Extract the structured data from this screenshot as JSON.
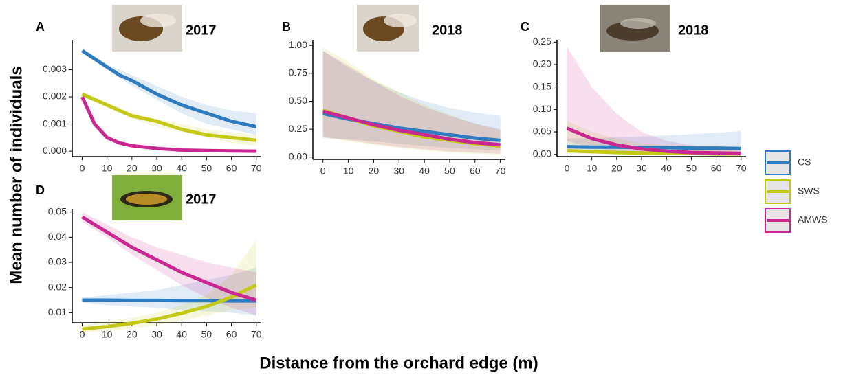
{
  "y_label": "Mean number of individuals",
  "x_label": "Distance from the orchard edge (m)",
  "legend": [
    {
      "name": "CS",
      "color": "#2e7bc0"
    },
    {
      "name": "SWS",
      "color": "#c4c817"
    },
    {
      "name": "AMWS",
      "color": "#c8288f"
    }
  ],
  "chart_data": [
    {
      "type": "line",
      "label": "A",
      "year": "2017",
      "x": [
        0,
        5,
        10,
        15,
        20,
        30,
        40,
        50,
        60,
        70
      ],
      "xlim": [
        -4,
        72
      ],
      "xticks": [
        0,
        10,
        20,
        30,
        40,
        50,
        60,
        70
      ],
      "ylim": [
        -0.0002,
        0.0041
      ],
      "yticks": [
        {
          "value": 0,
          "label": "0.000"
        },
        {
          "value": 0.001,
          "label": "0.001"
        },
        {
          "value": 0.002,
          "label": "0.002"
        },
        {
          "value": 0.003,
          "label": "0.003"
        }
      ],
      "series": [
        {
          "values": [
            0.0037,
            0.0034,
            0.0031,
            0.0028,
            0.0026,
            0.0021,
            0.0017,
            0.0014,
            0.0011,
            0.0009
          ],
          "lower": [
            0.0036,
            0.0033,
            0.003,
            0.0027,
            0.0024,
            0.0019,
            0.0014,
            0.001,
            0.0008,
            0.0006
          ],
          "upper": [
            0.0038,
            0.0035,
            0.0032,
            0.003,
            0.0028,
            0.0024,
            0.002,
            0.0017,
            0.0015,
            0.0014
          ]
        },
        {
          "values": [
            0.0021,
            0.0019,
            0.0017,
            0.0015,
            0.0013,
            0.0011,
            0.0008,
            0.0006,
            0.0005,
            0.0004
          ],
          "lower": [
            0.002,
            0.0018,
            0.0016,
            0.0014,
            0.0012,
            0.0009,
            0.0007,
            0.0005,
            0.0003,
            0.0002
          ],
          "upper": [
            0.0022,
            0.002,
            0.0018,
            0.0016,
            0.0014,
            0.0012,
            0.001,
            0.0008,
            0.0007,
            0.0006
          ]
        },
        {
          "values": [
            0.002,
            0.001,
            0.0005,
            0.0003,
            0.0002,
            0.0001,
            4e-05,
            2e-05,
            1e-05,
            0
          ]
        }
      ]
    },
    {
      "type": "line",
      "label": "B",
      "year": "2018",
      "x": [
        0,
        10,
        20,
        30,
        40,
        50,
        60,
        70
      ],
      "xlim": [
        -4,
        72
      ],
      "xticks": [
        0,
        10,
        20,
        30,
        40,
        50,
        60,
        70
      ],
      "ylim": [
        -0.02,
        1.05
      ],
      "yticks": [
        {
          "value": 0,
          "label": "0.00"
        },
        0.25,
        {
          "value": 0.5,
          "label": "0.50"
        },
        0.75,
        {
          "value": 1,
          "label": "1.00"
        }
      ],
      "series": [
        {
          "values": [
            0.39,
            0.34,
            0.3,
            0.26,
            0.23,
            0.2,
            0.17,
            0.15
          ],
          "lower": [
            0.17,
            0.16,
            0.14,
            0.12,
            0.1,
            0.08,
            0.07,
            0.06
          ],
          "upper": [
            0.95,
            0.8,
            0.68,
            0.58,
            0.5,
            0.44,
            0.4,
            0.37
          ]
        },
        {
          "values": [
            0.42,
            0.35,
            0.28,
            0.23,
            0.18,
            0.15,
            0.12,
            0.1
          ],
          "lower": [
            0.18,
            0.14,
            0.11,
            0.08,
            0.06,
            0.04,
            0.03,
            0.02
          ],
          "upper": [
            0.98,
            0.85,
            0.7,
            0.58,
            0.47,
            0.38,
            0.3,
            0.24
          ]
        },
        {
          "values": [
            0.41,
            0.35,
            0.29,
            0.24,
            0.2,
            0.16,
            0.13,
            0.11
          ],
          "lower": [
            0.18,
            0.15,
            0.12,
            0.09,
            0.07,
            0.05,
            0.04,
            0.03
          ],
          "upper": [
            0.95,
            0.82,
            0.68,
            0.55,
            0.45,
            0.37,
            0.3,
            0.25
          ]
        }
      ]
    },
    {
      "type": "line",
      "label": "C",
      "year": "2018",
      "x": [
        0,
        10,
        20,
        30,
        40,
        50,
        60,
        70
      ],
      "xlim": [
        -4,
        72
      ],
      "xticks": [
        0,
        10,
        20,
        30,
        40,
        50,
        60,
        70
      ],
      "ylim": [
        -0.005,
        0.255
      ],
      "yticks": [
        {
          "value": 0,
          "label": "0.00"
        },
        0.05,
        {
          "value": 0.1,
          "label": "0.10"
        },
        0.15,
        {
          "value": 0.2,
          "label": "0.20"
        },
        0.25
      ],
      "series": [
        {
          "values": [
            0.017,
            0.016,
            0.016,
            0.015,
            0.015,
            0.014,
            0.014,
            0.013
          ],
          "lower": [
            0.008,
            0.007,
            0.006,
            0.005,
            0.004,
            0.003,
            0.003,
            0.002
          ],
          "upper": [
            0.035,
            0.036,
            0.038,
            0.04,
            0.042,
            0.045,
            0.048,
            0.052
          ]
        },
        {
          "values": [
            0.008,
            0.006,
            0.004,
            0.003,
            0.002,
            0.002,
            0.001,
            0.001
          ],
          "lower": [
            0.002,
            0.001,
            0.001,
            0,
            0,
            0,
            0,
            0
          ],
          "upper": [
            0.075,
            0.05,
            0.035,
            0.025,
            0.02,
            0.018,
            0.015,
            0.012
          ]
        },
        {
          "values": [
            0.058,
            0.035,
            0.021,
            0.012,
            0.007,
            0.004,
            0.003,
            0.002
          ],
          "lower": [
            0.03,
            0.015,
            0.007,
            0.003,
            0.001,
            0.001,
            0,
            0
          ],
          "upper": [
            0.24,
            0.15,
            0.09,
            0.05,
            0.03,
            0.02,
            0.015,
            0.01
          ]
        }
      ]
    },
    {
      "type": "line",
      "label": "D",
      "year": "2017",
      "x": [
        0,
        10,
        20,
        30,
        40,
        50,
        60,
        70
      ],
      "xlim": [
        -4,
        72
      ],
      "xticks": [
        0,
        10,
        20,
        30,
        40,
        50,
        60,
        70
      ],
      "ylim": [
        0.006,
        0.051
      ],
      "yticks": [
        0.01,
        0.02,
        0.03,
        0.04,
        0.05
      ],
      "series": [
        {
          "values": [
            0.015,
            0.015,
            0.0149,
            0.0149,
            0.0148,
            0.0148,
            0.0147,
            0.0147
          ],
          "lower": [
            0.014,
            0.013,
            0.0125,
            0.012,
            0.011,
            0.0105,
            0.01,
            0.009
          ],
          "upper": [
            0.016,
            0.017,
            0.018,
            0.019,
            0.021,
            0.023,
            0.025,
            0.028
          ]
        },
        {
          "values": [
            0.0035,
            0.0045,
            0.0058,
            0.0075,
            0.0098,
            0.0125,
            0.0162,
            0.021
          ],
          "lower": [
            0.002,
            0.0028,
            0.0038,
            0.005,
            0.0068,
            0.009,
            0.011,
            0.012
          ],
          "upper": [
            0.005,
            0.0065,
            0.008,
            0.01,
            0.013,
            0.017,
            0.025,
            0.039
          ]
        },
        {
          "values": [
            0.048,
            0.042,
            0.036,
            0.031,
            0.026,
            0.022,
            0.018,
            0.015
          ],
          "lower": [
            0.046,
            0.04,
            0.033,
            0.027,
            0.021,
            0.016,
            0.012,
            0.009
          ],
          "upper": [
            0.05,
            0.045,
            0.04,
            0.036,
            0.033,
            0.03,
            0.028,
            0.026
          ]
        }
      ]
    }
  ]
}
